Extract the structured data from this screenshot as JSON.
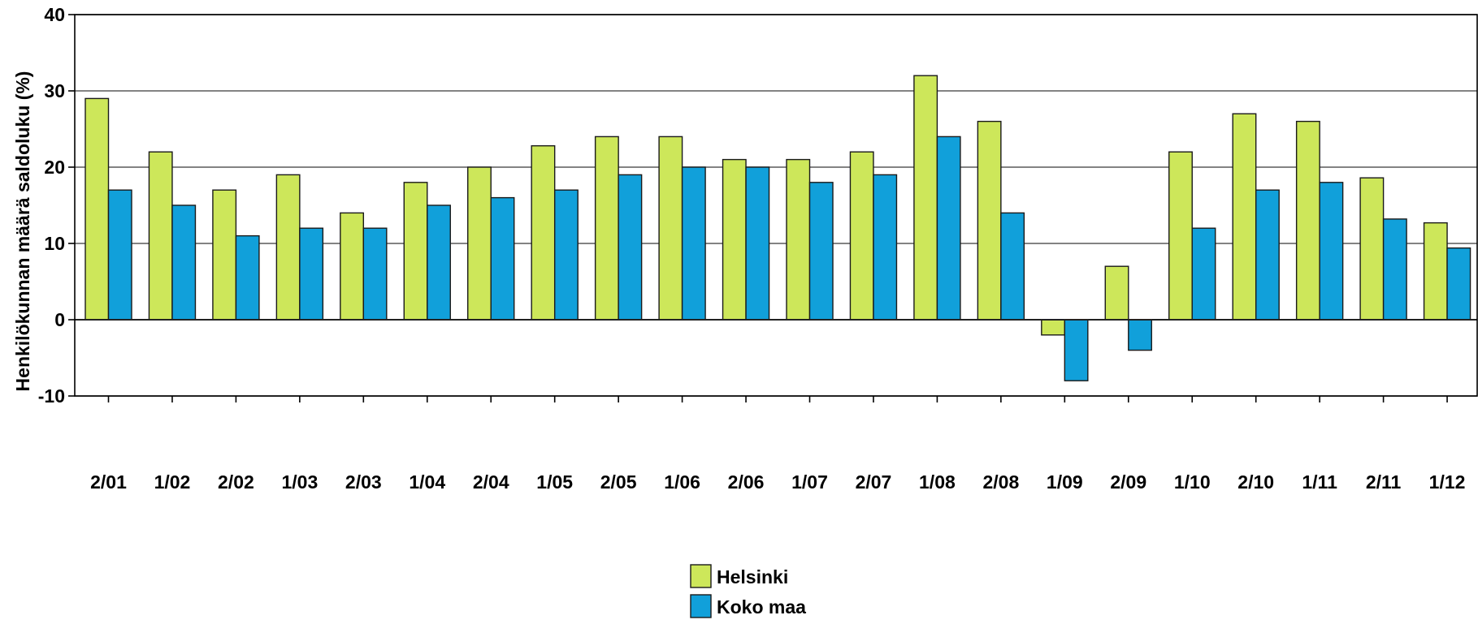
{
  "chart_data": {
    "type": "bar",
    "title": "",
    "xlabel": "",
    "ylabel": "Henkilökunnan määrä saldoluku (%)",
    "ylim": [
      -10,
      40
    ],
    "yticks": [
      -10,
      0,
      10,
      20,
      30,
      40
    ],
    "grid": true,
    "legend_position": "bottom-center",
    "categories": [
      "2/01",
      "1/02",
      "2/02",
      "1/03",
      "2/03",
      "1/04",
      "2/04",
      "1/05",
      "2/05",
      "1/06",
      "2/06",
      "1/07",
      "2/07",
      "1/08",
      "2/08",
      "1/09",
      "2/09",
      "1/10",
      "2/10",
      "1/11",
      "2/11",
      "1/12"
    ],
    "series": [
      {
        "name": "Helsinki",
        "color": "#cde75a",
        "values": [
          29,
          22,
          17,
          19,
          14,
          18,
          20,
          22.8,
          24,
          24,
          21,
          21,
          22,
          32,
          26,
          -2,
          7,
          22,
          27,
          26,
          18.6,
          12.7
        ]
      },
      {
        "name": "Koko maa",
        "color": "#11a0da",
        "values": [
          17,
          15,
          11,
          12,
          12,
          15,
          16,
          17,
          19,
          20,
          20,
          18,
          19,
          24,
          14,
          -8,
          -4,
          12,
          17,
          18,
          13.2,
          9.4
        ]
      }
    ]
  }
}
